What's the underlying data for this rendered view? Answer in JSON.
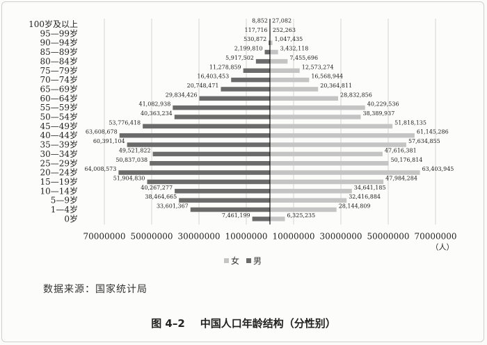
{
  "chart_data": {
    "type": "bar",
    "orientation": "horizontal-pyramid",
    "categories": [
      "0岁",
      "1—4岁",
      "5—9岁",
      "10—14岁",
      "15—19岁",
      "20—24岁",
      "25—29岁",
      "30—34岁",
      "35—39岁",
      "40—44岁",
      "45—49岁",
      "50—54岁",
      "55—59岁",
      "60—64岁",
      "65—69岁",
      "70—74岁",
      "75—79岁",
      "80—84岁",
      "85—89岁",
      "90—94岁",
      "95—99岁",
      "100岁及以上"
    ],
    "series": [
      {
        "name": "男",
        "side": "left",
        "color": "#6b6b6b",
        "values": [
          7461199,
          33601367,
          38464665,
          40267277,
          51904830,
          64008573,
          50837038,
          49521822,
          60391104,
          63608678,
          53776418,
          40363234,
          41082938,
          29834426,
          20748471,
          16403453,
          11278859,
          5917502,
          2199810,
          530872,
          117716,
          8852
        ],
        "labels": [
          "7,461,199",
          "33,601,367",
          "38,464,665",
          "40,267,277",
          "51,904,830",
          "64,008,573",
          "50,837,038",
          "49,521,822",
          "60,391,104",
          "63,608,678",
          "53,776,418",
          "40,363,234",
          "41,082,938",
          "29,834,426",
          "20,748,471",
          "16,403,453",
          "11,278,859",
          "5,917,502",
          "2,199,810",
          "530,872",
          "117,716",
          "8,852"
        ]
      },
      {
        "name": "女",
        "side": "right",
        "color": "#c4c4c4",
        "values": [
          6325235,
          28144809,
          32416884,
          34641185,
          47984284,
          63403945,
          50176814,
          47616381,
          57634855,
          61145286,
          51818135,
          38389937,
          40229536,
          28832856,
          20364811,
          16568944,
          12573274,
          7455696,
          3432118,
          1047435,
          252263,
          27082
        ],
        "labels": [
          "6,325,235",
          "28,144,809",
          "32,416,884",
          "34,641,185",
          "47,984,284",
          "63,403,945",
          "50,176,814",
          "47,616,381",
          "57,634,855",
          "61,145,286",
          "51,818,135",
          "38,389,937",
          "40,229,536",
          "28,832,856",
          "20,364,811",
          "16,568,944",
          "12,573,274",
          "7,455,696",
          "3,432,118",
          "1,047,435",
          "252,263",
          "27,082"
        ]
      }
    ],
    "xticks": [
      "70000000",
      "50000000",
      "30000000",
      "10000000",
      "10000000",
      "30000000",
      "50000000",
      "70000000"
    ],
    "xtick_values": [
      -70000000,
      -50000000,
      -30000000,
      -10000000,
      10000000,
      30000000,
      50000000,
      70000000
    ],
    "xlim": [
      -70000000,
      70000000
    ],
    "unit": "（人）",
    "grid": true,
    "legend_position": "bottom-center"
  },
  "legend": {
    "female": "女",
    "male": "男"
  },
  "source_text": "数据来源：国家统计局",
  "caption": {
    "number": "图 4–2",
    "title": "中国人口年龄结构（分性别）"
  }
}
